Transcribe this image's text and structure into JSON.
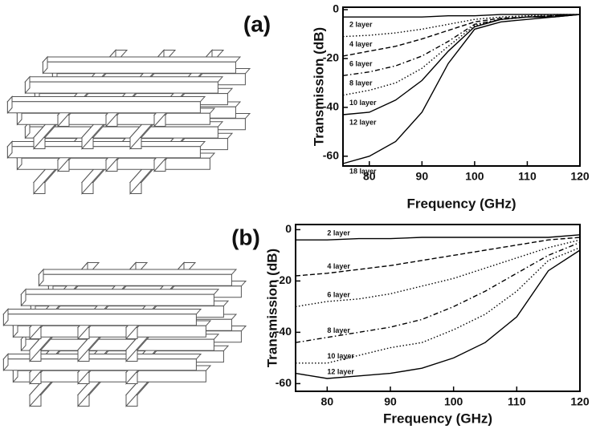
{
  "chart_data": [
    {
      "type": "line",
      "panel_label": "(a)",
      "x_label": "Frequency (GHz)",
      "y_label": "Transmission (dB)",
      "x": [
        75,
        80,
        85,
        90,
        95,
        100,
        105,
        110,
        115,
        120
      ],
      "xlim": [
        75,
        120
      ],
      "ylim": [
        -64,
        1
      ],
      "xticks": [
        80,
        90,
        100,
        110,
        120
      ],
      "yticks": [
        0,
        -20,
        -40,
        -60
      ],
      "series": [
        {
          "name": "2 layer",
          "color": "#000000",
          "style": "solid",
          "values": [
            -3,
            -3,
            -3,
            -3,
            -2.5,
            -2.5,
            -2,
            -2,
            -2,
            -2
          ]
        },
        {
          "name": "4 layer",
          "color": "#000000",
          "style": "dotted",
          "values": [
            -11,
            -10.5,
            -9.5,
            -8,
            -6,
            -4,
            -3,
            -2.5,
            -2,
            -2
          ]
        },
        {
          "name": "6 layer",
          "color": "#000000",
          "style": "dashed",
          "values": [
            -19,
            -17,
            -15,
            -12,
            -8.5,
            -5,
            -3.5,
            -3,
            -2.5,
            -2
          ]
        },
        {
          "name": "8 layer",
          "color": "#000000",
          "style": "dashdot",
          "values": [
            -27,
            -25.5,
            -23,
            -19,
            -13,
            -6,
            -4,
            -3,
            -2.5,
            -2
          ]
        },
        {
          "name": "10 layer",
          "color": "#000000",
          "style": "dotted",
          "values": [
            -35,
            -33,
            -30,
            -24,
            -15,
            -6.5,
            -4,
            -3,
            -2.5,
            -2
          ]
        },
        {
          "name": "12 layer",
          "color": "#000000",
          "style": "solid",
          "values": [
            -43,
            -42,
            -37,
            -29,
            -17,
            -7,
            -4,
            -3,
            -3,
            -2
          ]
        },
        {
          "name": "18 layer",
          "color": "#000000",
          "style": "solid",
          "values": [
            -63,
            -60,
            -54,
            -42,
            -22,
            -8,
            -5,
            -4,
            -3,
            -2
          ]
        }
      ]
    },
    {
      "type": "line",
      "panel_label": "(b)",
      "x_label": "Frequency (GHz)",
      "y_label": "Transmission (dB)",
      "x": [
        75,
        80,
        85,
        90,
        95,
        100,
        105,
        110,
        115,
        120
      ],
      "xlim": [
        75,
        120
      ],
      "ylim": [
        -63,
        2
      ],
      "xticks": [
        80,
        90,
        100,
        110,
        120
      ],
      "yticks": [
        0,
        -20,
        -40,
        -60
      ],
      "series": [
        {
          "name": "2 layer",
          "color": "#000000",
          "style": "solid",
          "values": [
            -4,
            -4,
            -3.5,
            -3.5,
            -3,
            -3,
            -3,
            -3,
            -3,
            -2
          ]
        },
        {
          "name": "4 layer",
          "color": "#000000",
          "style": "dashed",
          "values": [
            -18,
            -17,
            -15.5,
            -14,
            -12,
            -10,
            -8,
            -6,
            -4,
            -3
          ]
        },
        {
          "name": "6 layer",
          "color": "#000000",
          "style": "dotted",
          "values": [
            -30,
            -28,
            -27,
            -25,
            -22,
            -19,
            -15,
            -11,
            -7,
            -4
          ]
        },
        {
          "name": "8 layer",
          "color": "#000000",
          "style": "dashdot",
          "values": [
            -44,
            -42,
            -40,
            -38,
            -35,
            -30,
            -24,
            -17,
            -10,
            -5
          ]
        },
        {
          "name": "10 layer",
          "color": "#000000",
          "style": "dotted",
          "values": [
            -52,
            -52,
            -49,
            -46,
            -44,
            -39,
            -33,
            -24,
            -12,
            -7
          ]
        },
        {
          "name": "12 layer",
          "color": "#000000",
          "style": "solid",
          "values": [
            -56,
            -58,
            -57,
            -56,
            -54,
            -50,
            -44,
            -34,
            -16,
            -8
          ]
        }
      ]
    }
  ]
}
